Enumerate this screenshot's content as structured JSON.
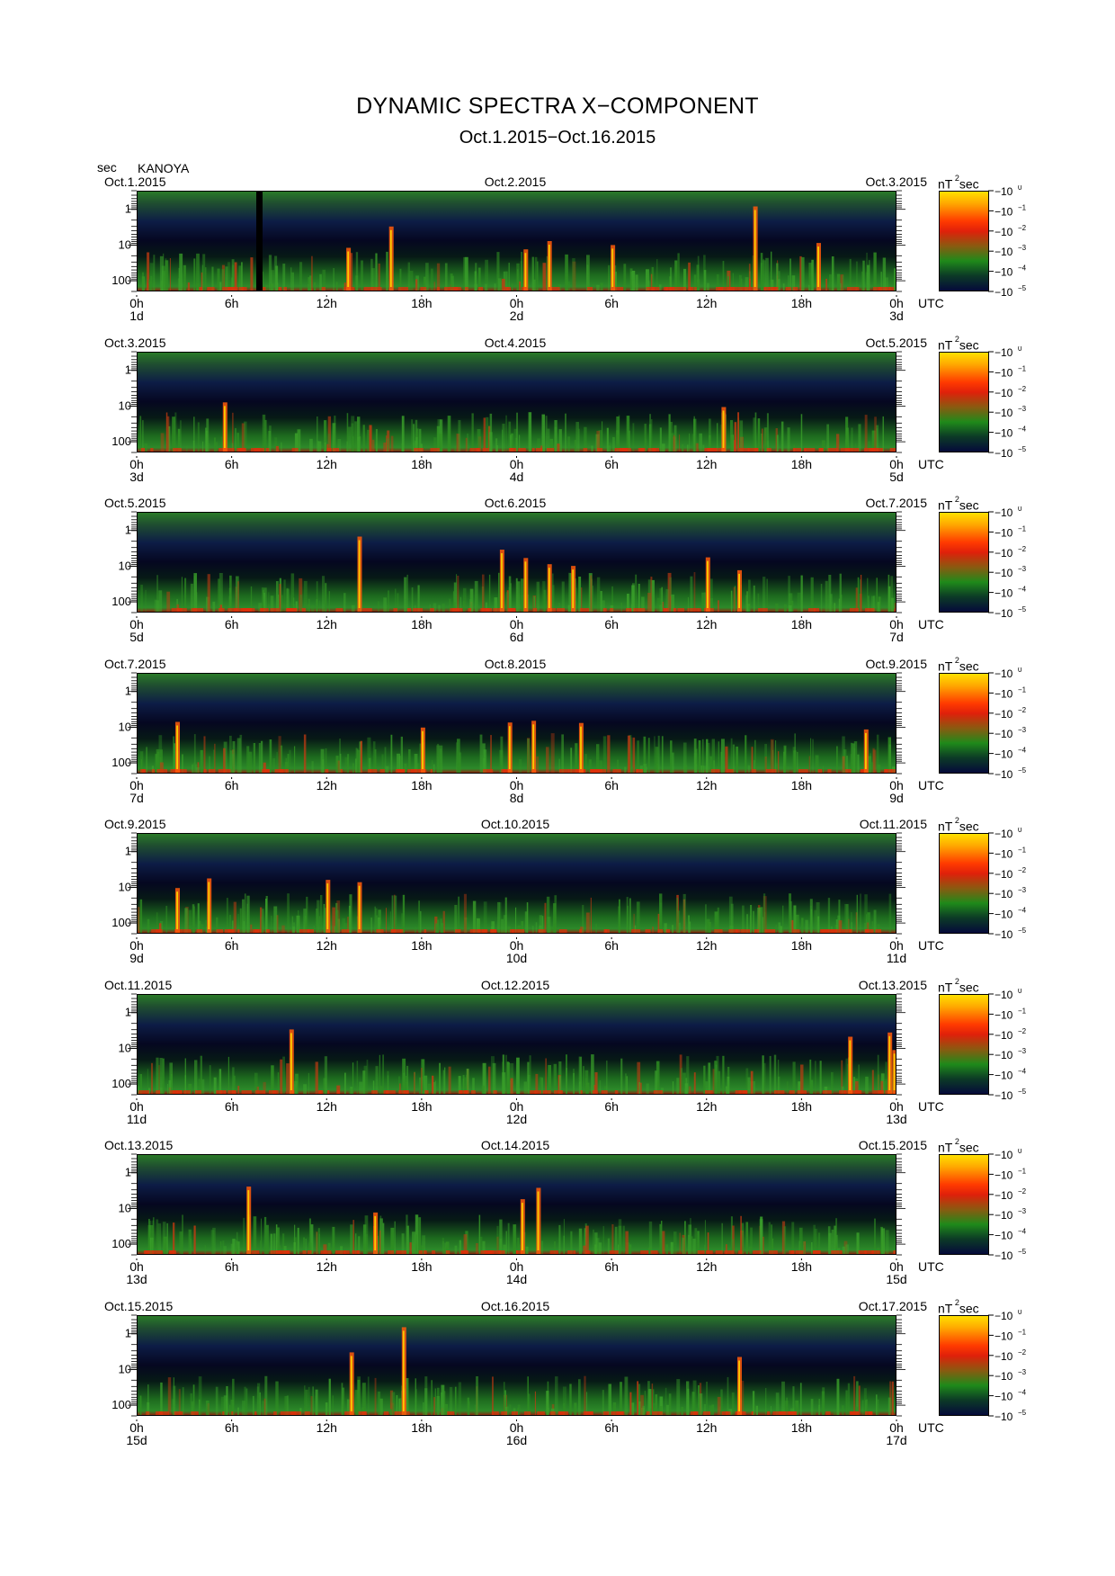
{
  "title": "DYNAMIC SPECTRA X−COMPONENT",
  "subtitle": "Oct.1.2015−Oct.16.2015",
  "y_unit": "sec",
  "station": "KANOYA",
  "colorbar_unit": "nT",
  "colorbar_unit_exp": "2",
  "colorbar_unit_suffix": "sec",
  "colorbar_ticks": [
    "0",
    "−1",
    "−2",
    "−3",
    "−4",
    "−5"
  ],
  "colorbar_base": "−10",
  "x_tick_labels": [
    "0h",
    "6h",
    "12h",
    "18h",
    "0h",
    "6h",
    "12h",
    "18h",
    "0h"
  ],
  "x_unit": "UTC",
  "colors": {
    "cbar_top": "#ffe000",
    "cbar_mid": "#ff3a00",
    "cbar_green": "#1f8a1a",
    "cbar_bottom": "#050a3a"
  },
  "chart_data": {
    "type": "heatmap",
    "title": "DYNAMIC SPECTRA X−COMPONENT",
    "subtitle": "Oct.1.2015−Oct.16.2015",
    "ylabel": "sec",
    "y_scale": "log",
    "y_ticks": [
      "1",
      "10",
      "100"
    ],
    "ylim": [
      0.3,
      200
    ],
    "xlabel": "UTC",
    "colorbar": {
      "label": "nT²sec",
      "scale": "log",
      "range": [
        1e-05,
        1
      ]
    },
    "panels": [
      {
        "date_left": "Oct.1.2015",
        "date_mid": "Oct.2.2015",
        "date_right": "Oct.3.2015",
        "day_start": "1d",
        "day_mid": "2d",
        "day_end": "3d",
        "events": [
          {
            "hour": 7.5,
            "type": "gap"
          },
          {
            "hour": 13.3,
            "type": "burst"
          },
          {
            "hour": 16.0,
            "type": "burst"
          },
          {
            "hour": 24.5,
            "type": "burst"
          },
          {
            "hour": 26.0,
            "type": "burst"
          },
          {
            "hour": 30.0,
            "type": "burst"
          },
          {
            "hour": 39.0,
            "type": "burst"
          },
          {
            "hour": 43.0,
            "type": "burst"
          }
        ]
      },
      {
        "date_left": "Oct.3.2015",
        "date_mid": "Oct.4.2015",
        "date_right": "Oct.5.2015",
        "day_start": "3d",
        "day_mid": "4d",
        "day_end": "5d",
        "events": [
          {
            "hour": 5.5,
            "type": "burst"
          },
          {
            "hour": 37.0,
            "type": "burst"
          }
        ]
      },
      {
        "date_left": "Oct.5.2015",
        "date_mid": "Oct.6.2015",
        "date_right": "Oct.7.2015",
        "day_start": "5d",
        "day_mid": "6d",
        "day_end": "7d",
        "events": [
          {
            "hour": 14.0,
            "type": "burst"
          },
          {
            "hour": 23.0,
            "type": "burst"
          },
          {
            "hour": 24.5,
            "type": "burst"
          },
          {
            "hour": 26.0,
            "type": "burst"
          },
          {
            "hour": 27.5,
            "type": "burst"
          },
          {
            "hour": 36.0,
            "type": "burst"
          },
          {
            "hour": 38.0,
            "type": "burst"
          }
        ]
      },
      {
        "date_left": "Oct.7.2015",
        "date_mid": "Oct.8.2015",
        "date_right": "Oct.9.2015",
        "day_start": "7d",
        "day_mid": "8d",
        "day_end": "9d",
        "events": [
          {
            "hour": 2.5,
            "type": "burst"
          },
          {
            "hour": 23.5,
            "type": "burst"
          },
          {
            "hour": 18.0,
            "type": "burst"
          },
          {
            "hour": 25.0,
            "type": "burst"
          },
          {
            "hour": 28.0,
            "type": "burst"
          },
          {
            "hour": 46.0,
            "type": "burst"
          }
        ]
      },
      {
        "date_left": "Oct.9.2015",
        "date_mid": "Oct.10.2015",
        "date_right": "Oct.11.2015",
        "day_start": "9d",
        "day_mid": "10d",
        "day_end": "11d",
        "events": [
          {
            "hour": 2.5,
            "type": "burst"
          },
          {
            "hour": 4.5,
            "type": "burst"
          },
          {
            "hour": 12.0,
            "type": "burst"
          },
          {
            "hour": 14.0,
            "type": "burst"
          }
        ]
      },
      {
        "date_left": "Oct.11.2015",
        "date_mid": "Oct.12.2015",
        "date_right": "Oct.13.2015",
        "day_start": "11d",
        "day_mid": "12d",
        "day_end": "13d",
        "events": [
          {
            "hour": 9.7,
            "type": "burst"
          },
          {
            "hour": 45.0,
            "type": "burst"
          },
          {
            "hour": 47.5,
            "type": "burst"
          },
          {
            "hour": 47.8,
            "type": "burst"
          }
        ]
      },
      {
        "date_left": "Oct.13.2015",
        "date_mid": "Oct.14.2015",
        "date_right": "Oct.15.2015",
        "day_start": "13d",
        "day_mid": "14d",
        "day_end": "15d",
        "events": [
          {
            "hour": 7.0,
            "type": "burst"
          },
          {
            "hour": 15.0,
            "type": "burst"
          },
          {
            "hour": 24.3,
            "type": "burst"
          },
          {
            "hour": 25.3,
            "type": "burst"
          }
        ]
      },
      {
        "date_left": "Oct.15.2015",
        "date_mid": "Oct.16.2015",
        "date_right": "Oct.17.2015",
        "day_start": "15d",
        "day_mid": "16d",
        "day_end": "17d",
        "events": [
          {
            "hour": 13.5,
            "type": "burst"
          },
          {
            "hour": 16.8,
            "type": "burst"
          },
          {
            "hour": 38.0,
            "type": "burst"
          }
        ]
      }
    ]
  }
}
